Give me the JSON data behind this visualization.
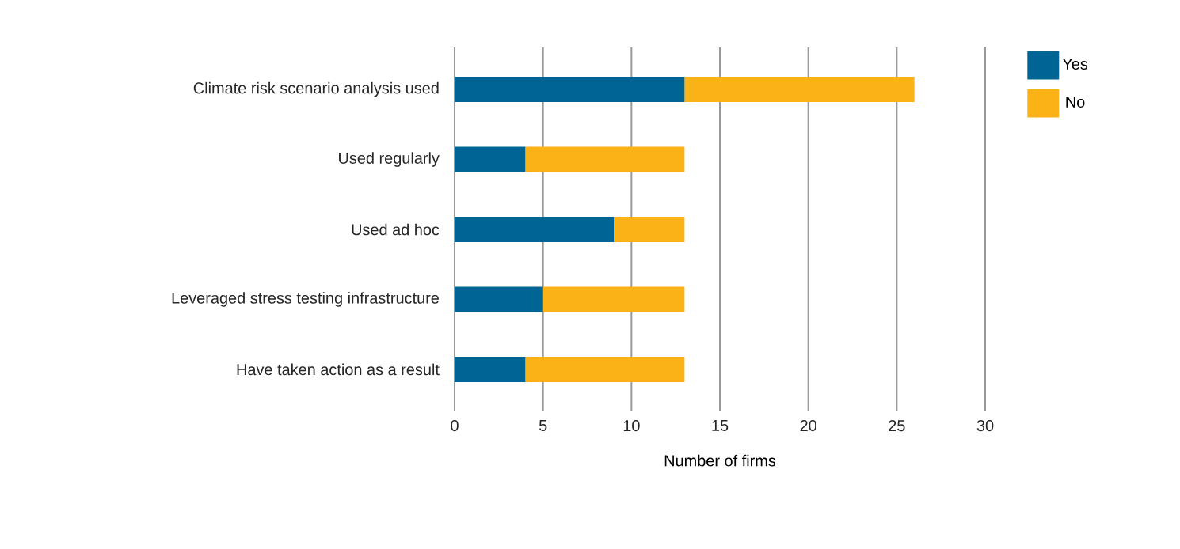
{
  "chart_data": {
    "type": "bar",
    "orientation": "horizontal",
    "stacked": true,
    "categories": [
      "Climate risk scenario analysis used",
      "Used regularly",
      "Used ad hoc",
      "Leveraged stress testing infrastructure",
      "Have taken action as a result"
    ],
    "series": [
      {
        "name": "Yes",
        "color": "#006595",
        "values": [
          13,
          4,
          9,
          5,
          4
        ]
      },
      {
        "name": "No",
        "color": "#fbb216",
        "values": [
          13,
          9,
          4,
          8,
          9
        ]
      }
    ],
    "xlabel": "Number of firms",
    "xlim": [
      0,
      30
    ],
    "xticks": [
      0,
      5,
      10,
      15,
      20,
      25,
      30
    ],
    "grid": "x",
    "legend": "top right"
  }
}
